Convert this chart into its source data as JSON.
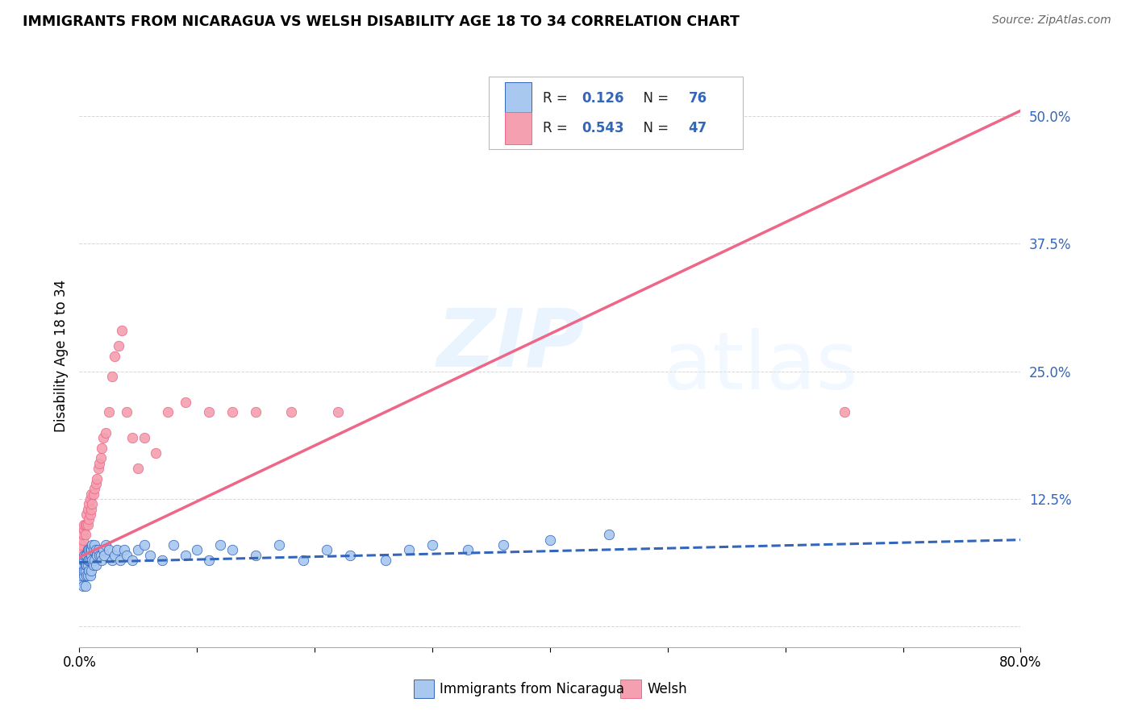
{
  "title": "IMMIGRANTS FROM NICARAGUA VS WELSH DISABILITY AGE 18 TO 34 CORRELATION CHART",
  "source": "Source: ZipAtlas.com",
  "ylabel": "Disability Age 18 to 34",
  "xlim": [
    0.0,
    0.8
  ],
  "ylim": [
    -0.02,
    0.55
  ],
  "r_nicaragua": 0.126,
  "n_nicaragua": 76,
  "r_welsh": 0.543,
  "n_welsh": 47,
  "color_nicaragua": "#a8c8f0",
  "color_welsh": "#f4a0b0",
  "trendline_nicaragua_color": "#3366bb",
  "trendline_welsh_color": "#ee6688",
  "watermark_zip": "ZIP",
  "watermark_atlas": "atlas",
  "background_color": "#ffffff",
  "nicaragua_x": [
    0.001,
    0.002,
    0.002,
    0.003,
    0.003,
    0.003,
    0.004,
    0.004,
    0.004,
    0.004,
    0.005,
    0.005,
    0.005,
    0.005,
    0.006,
    0.006,
    0.006,
    0.007,
    0.007,
    0.007,
    0.007,
    0.008,
    0.008,
    0.008,
    0.009,
    0.009,
    0.009,
    0.01,
    0.01,
    0.01,
    0.011,
    0.011,
    0.012,
    0.012,
    0.013,
    0.013,
    0.014,
    0.014,
    0.015,
    0.016,
    0.017,
    0.018,
    0.019,
    0.02,
    0.021,
    0.022,
    0.025,
    0.028,
    0.03,
    0.032,
    0.035,
    0.038,
    0.04,
    0.045,
    0.05,
    0.055,
    0.06,
    0.07,
    0.08,
    0.09,
    0.1,
    0.11,
    0.12,
    0.13,
    0.15,
    0.17,
    0.19,
    0.21,
    0.23,
    0.26,
    0.28,
    0.3,
    0.33,
    0.36,
    0.4,
    0.45
  ],
  "nicaragua_y": [
    0.045,
    0.05,
    0.055,
    0.04,
    0.06,
    0.065,
    0.05,
    0.055,
    0.065,
    0.07,
    0.04,
    0.055,
    0.06,
    0.07,
    0.05,
    0.06,
    0.07,
    0.05,
    0.06,
    0.065,
    0.075,
    0.055,
    0.065,
    0.075,
    0.05,
    0.065,
    0.075,
    0.055,
    0.07,
    0.075,
    0.065,
    0.08,
    0.06,
    0.075,
    0.065,
    0.08,
    0.06,
    0.075,
    0.07,
    0.075,
    0.07,
    0.07,
    0.065,
    0.075,
    0.07,
    0.08,
    0.075,
    0.065,
    0.07,
    0.075,
    0.065,
    0.075,
    0.07,
    0.065,
    0.075,
    0.08,
    0.07,
    0.065,
    0.08,
    0.07,
    0.075,
    0.065,
    0.08,
    0.075,
    0.07,
    0.08,
    0.065,
    0.075,
    0.07,
    0.065,
    0.075,
    0.08,
    0.075,
    0.08,
    0.085,
    0.09
  ],
  "welsh_x": [
    0.001,
    0.002,
    0.003,
    0.003,
    0.004,
    0.004,
    0.005,
    0.005,
    0.006,
    0.006,
    0.007,
    0.007,
    0.008,
    0.008,
    0.009,
    0.009,
    0.01,
    0.01,
    0.011,
    0.012,
    0.013,
    0.014,
    0.015,
    0.016,
    0.017,
    0.018,
    0.019,
    0.02,
    0.022,
    0.025,
    0.028,
    0.03,
    0.033,
    0.036,
    0.04,
    0.045,
    0.05,
    0.055,
    0.065,
    0.075,
    0.09,
    0.11,
    0.13,
    0.15,
    0.18,
    0.22,
    0.65
  ],
  "welsh_y": [
    0.075,
    0.08,
    0.085,
    0.09,
    0.095,
    0.1,
    0.09,
    0.1,
    0.1,
    0.11,
    0.1,
    0.115,
    0.105,
    0.12,
    0.11,
    0.125,
    0.115,
    0.13,
    0.12,
    0.13,
    0.135,
    0.14,
    0.145,
    0.155,
    0.16,
    0.165,
    0.175,
    0.185,
    0.19,
    0.21,
    0.245,
    0.265,
    0.275,
    0.29,
    0.21,
    0.185,
    0.155,
    0.185,
    0.17,
    0.21,
    0.22,
    0.21,
    0.21,
    0.21,
    0.21,
    0.21,
    0.21
  ],
  "trendline_welsh_x0": 0.0,
  "trendline_welsh_y0": 0.068,
  "trendline_welsh_x1": 0.8,
  "trendline_welsh_y1": 0.505,
  "trendline_nic_x0": 0.0,
  "trendline_nic_y0": 0.063,
  "trendline_nic_x1": 0.8,
  "trendline_nic_y1": 0.085
}
